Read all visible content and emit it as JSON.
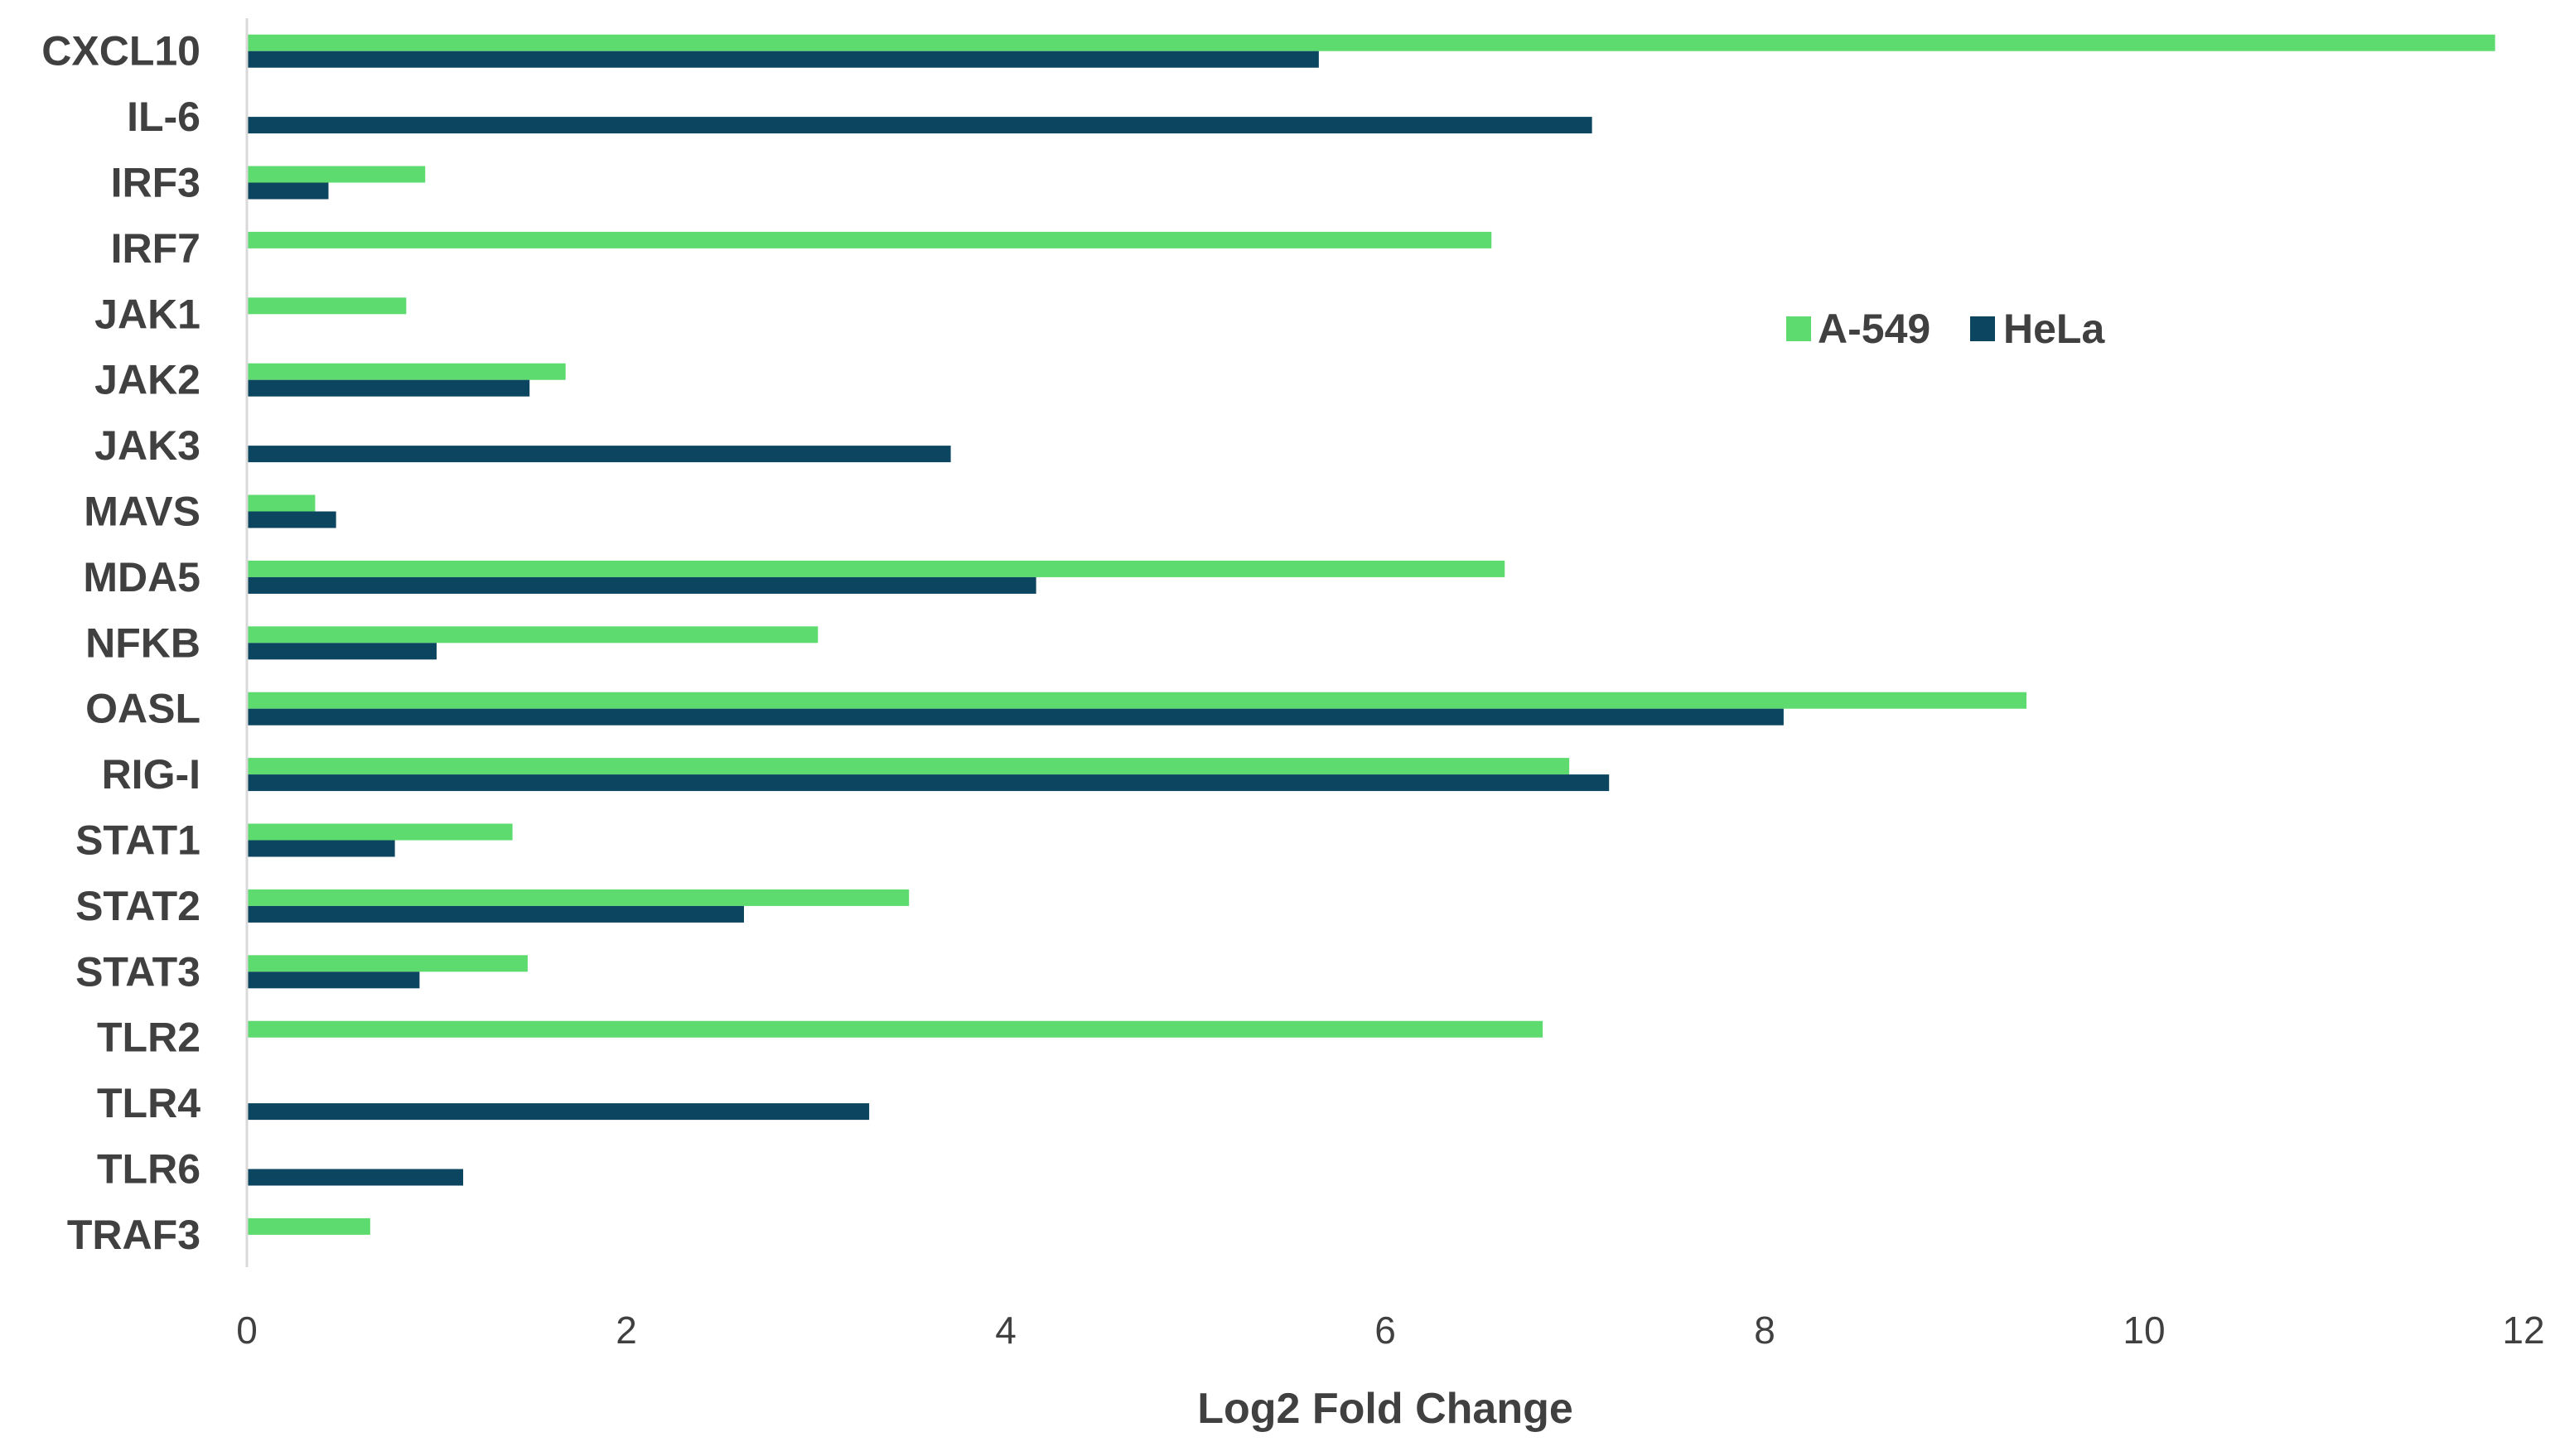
{
  "chart_data": {
    "type": "bar",
    "orientation": "horizontal",
    "categories": [
      "CXCL10",
      "IL-6",
      "IRF3",
      "IRF7",
      "JAK1",
      "JAK2",
      "JAK3",
      "MAVS",
      "MDA5",
      "NFKB",
      "OASL",
      "RIG-I",
      "STAT1",
      "STAT2",
      "STAT3",
      "TLR2",
      "TLR4",
      "TLR6",
      "TRAF3"
    ],
    "series": [
      {
        "name": "A-549",
        "color": "#5EDB6E",
        "values": [
          11.85,
          0,
          0.94,
          6.56,
          0.84,
          1.68,
          0,
          0.36,
          6.63,
          3.01,
          9.38,
          6.97,
          1.4,
          3.49,
          1.48,
          6.83,
          0,
          0,
          0.65
        ]
      },
      {
        "name": "HeLa",
        "color": "#0C4560",
        "values": [
          5.65,
          7.09,
          0.43,
          0,
          0,
          1.49,
          3.71,
          0.47,
          4.16,
          1.0,
          8.1,
          7.18,
          0.78,
          2.62,
          0.91,
          0,
          3.28,
          1.14,
          0
        ]
      }
    ],
    "xlabel": "Log2 Fold Change",
    "ylabel": "",
    "xlim": [
      0,
      12
    ],
    "xticks": [
      "0",
      "2",
      "4",
      "6",
      "8",
      "10",
      "12"
    ],
    "grid": false,
    "legend_position": "right"
  }
}
